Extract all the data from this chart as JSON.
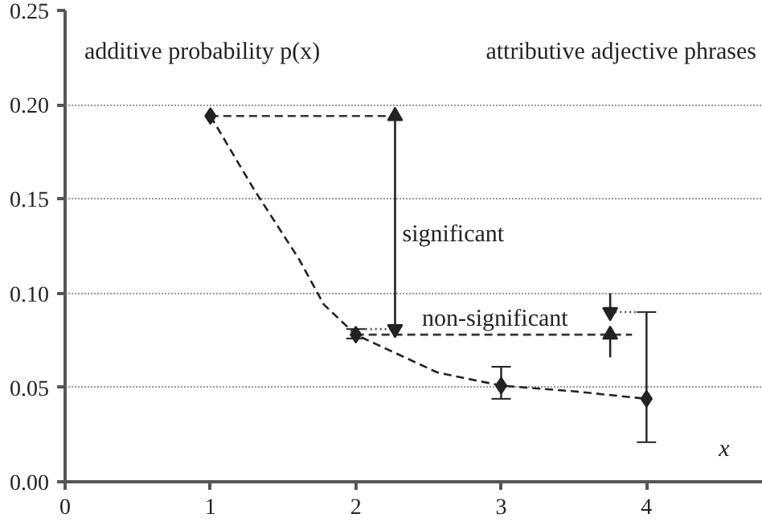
{
  "chart_data": {
    "type": "line",
    "title": "attributive adjective phrases",
    "ylabel": "additive probability p(x)",
    "xlabel": "x",
    "xlim": [
      0,
      4.8
    ],
    "xticks": [
      0,
      1,
      2,
      3,
      4
    ],
    "ylim": [
      0,
      0.25
    ],
    "yticks": [
      {
        "value": 0,
        "label": "0.00"
      },
      {
        "value": 0.05,
        "label": "0.05"
      },
      {
        "value": 0.1,
        "label": "0.10"
      },
      {
        "value": 0.15,
        "label": "0.15"
      },
      {
        "value": 0.2,
        "label": "0.20"
      },
      {
        "value": 0.25,
        "label": "0.25"
      }
    ],
    "grid": "y",
    "series": [
      {
        "line_style": "dashed",
        "color": "#222222",
        "x": [
          1,
          1.3,
          1.61,
          1.78,
          2,
          2.56,
          3,
          3.5,
          4
        ],
        "values": [
          0.194,
          0.155,
          0.118,
          0.094,
          0.078,
          0.058,
          0.051,
          0.048,
          0.044
        ]
      },
      {
        "line_style": "dashed",
        "color": "#333333",
        "x": [
          1,
          2.3
        ],
        "values": [
          0.194,
          0.194
        ]
      },
      {
        "line_style": "dotted",
        "color": "#555555",
        "x": [
          2,
          2.3
        ],
        "values": [
          0.081,
          0.081
        ]
      },
      {
        "line_style": "dashed",
        "color": "#333333",
        "x": [
          2,
          3.9
        ],
        "values": [
          0.078,
          0.078
        ]
      },
      {
        "line_style": "dotted",
        "color": "#555555",
        "x": [
          3.75,
          4
        ],
        "values": [
          0.09,
          0.09
        ]
      },
      {
        "marker": "triangle",
        "color": "#222222",
        "x": [
          2.27,
          2.27
        ],
        "values": [
          0.081,
          0.194
        ]
      },
      {
        "marker": "triangle",
        "color": "#222222",
        "x": [
          3.75,
          3.75
        ],
        "values": [
          0.1,
          0.09
        ]
      },
      {
        "marker": "triangle",
        "color": "#222222",
        "x": [
          3.75,
          3.75
        ],
        "values": [
          0.066,
          0.078
        ]
      },
      {
        "type": "scatter",
        "marker": "diamond",
        "color": "#222222",
        "x": [
          1,
          2,
          3,
          4
        ],
        "values": [
          0.194,
          0.078,
          0.051,
          0.044
        ],
        "errors": [
          null,
          [
            0.076,
            0.081
          ],
          [
            0.044,
            0.061
          ],
          [
            0.021,
            0.09
          ]
        ]
      }
    ],
    "annotations": [
      {
        "text": "significant",
        "x": 2.32,
        "y": 0.131
      },
      "non-significant"
    ]
  }
}
